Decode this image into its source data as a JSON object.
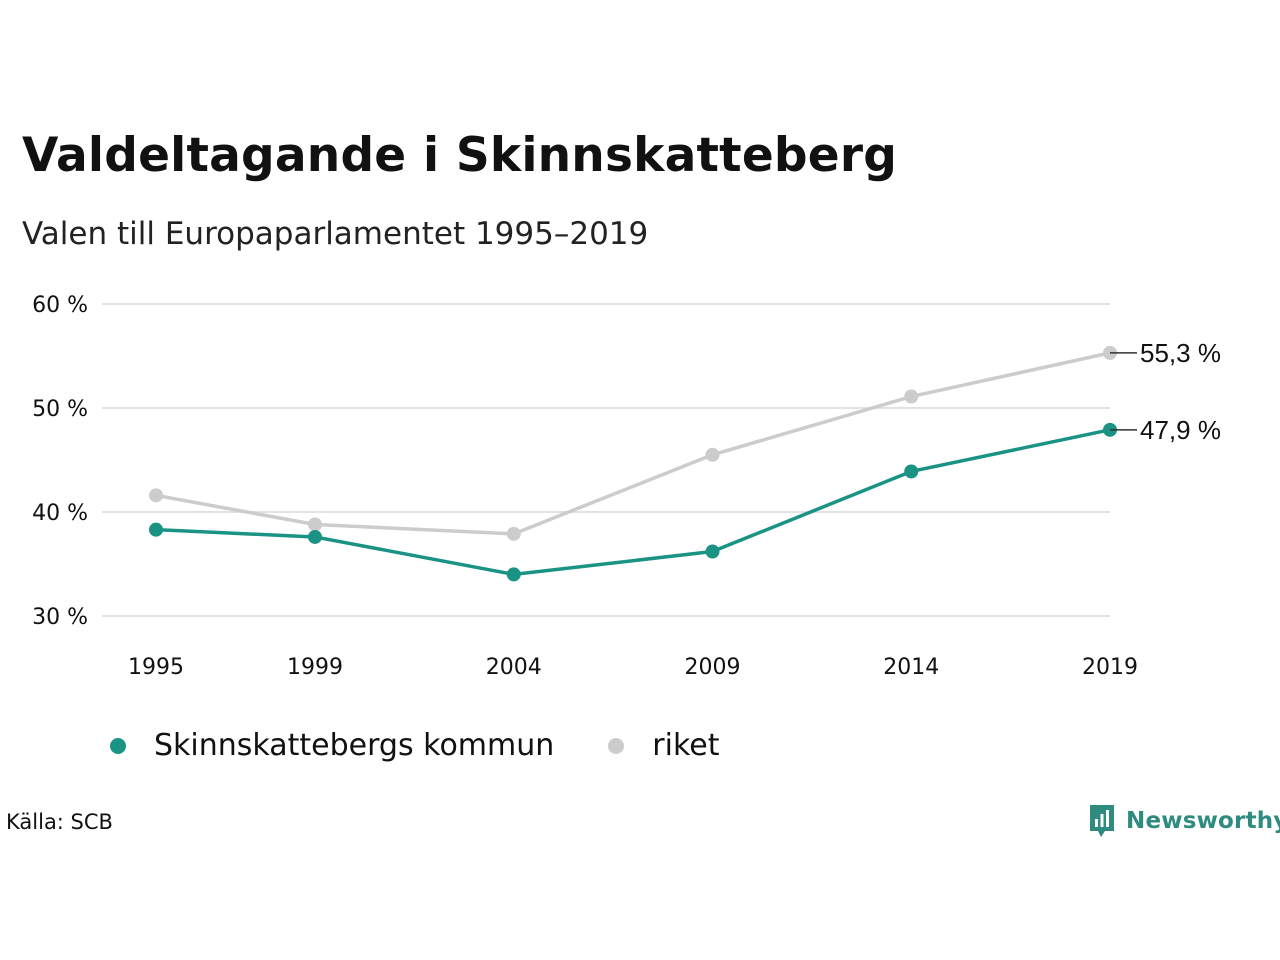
{
  "header": {
    "title": "Valdeltagande i Skinnskatteberg",
    "subtitle": "Valen till Europaparlamentet 1995–2019"
  },
  "chart_data": {
    "type": "line",
    "categories": [
      "1995",
      "1999",
      "2004",
      "2009",
      "2014",
      "2019"
    ],
    "x": [
      1995,
      1999,
      2004,
      2009,
      2014,
      2019
    ],
    "series": [
      {
        "name": "Skinnskattebergs kommun",
        "color": "#1a9385",
        "values": [
          38.3,
          37.6,
          34.0,
          36.2,
          43.9,
          47.9
        ]
      },
      {
        "name": "riket",
        "color": "#cccccc",
        "values": [
          41.6,
          38.8,
          37.9,
          45.5,
          51.1,
          55.3
        ]
      }
    ],
    "end_labels": [
      "47,9 %",
      "55,3 %"
    ],
    "yticks": [
      30,
      40,
      50,
      60
    ],
    "ytick_labels": [
      "30 %",
      "40 %",
      "50 %",
      "60 %"
    ],
    "ylim": [
      30,
      60
    ],
    "grid": true,
    "legend_position": "bottom-left"
  },
  "legend": {
    "items": [
      {
        "label": "Skinnskattebergs kommun",
        "color": "#1a9385"
      },
      {
        "label": "riket",
        "color": "#cccccc"
      }
    ]
  },
  "footer": {
    "source": "Källa: SCB",
    "logo_text": "Newsworthy",
    "logo_icon": "bar-chart-speech-bubble-icon"
  }
}
